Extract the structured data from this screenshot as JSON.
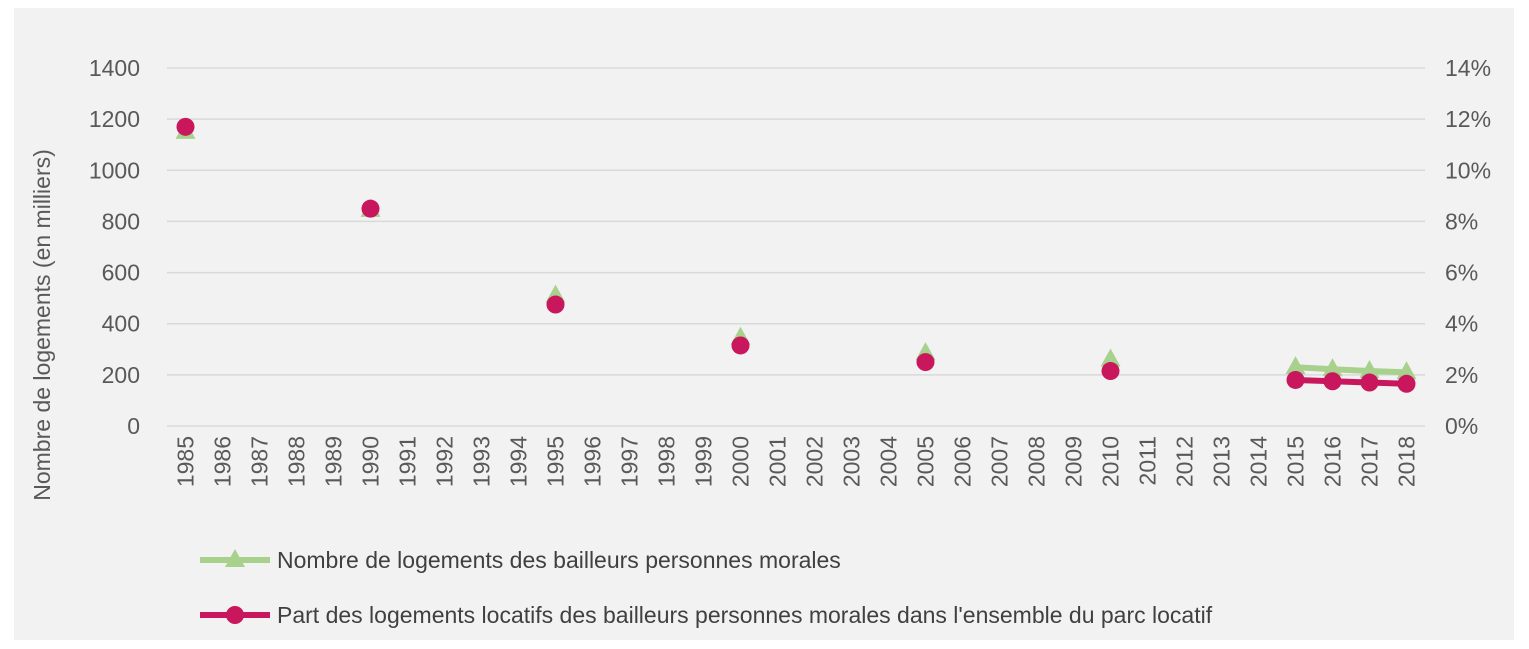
{
  "chart_data": {
    "type": "line",
    "title": "",
    "ylabel": "Nombre de logements (en milliers)",
    "y2label": "",
    "ylim": [
      0,
      1400
    ],
    "y2lim": [
      0,
      14
    ],
    "yticks": [
      "0",
      "200",
      "400",
      "600",
      "800",
      "1000",
      "1200",
      "1400"
    ],
    "y2ticks": [
      "0%",
      "2%",
      "4%",
      "6%",
      "8%",
      "10%",
      "12%",
      "14%"
    ],
    "categories": [
      "1985",
      "1986",
      "1987",
      "1988",
      "1989",
      "1990",
      "1991",
      "1992",
      "1993",
      "1994",
      "1995",
      "1996",
      "1997",
      "1998",
      "1999",
      "2000",
      "2001",
      "2002",
      "2003",
      "2004",
      "2005",
      "2006",
      "2007",
      "2008",
      "2009",
      "2010",
      "2011",
      "2012",
      "2013",
      "2014",
      "2015",
      "2016",
      "2017",
      "2018"
    ],
    "grid": true,
    "legend_position": "bottom",
    "series": [
      {
        "name": "Nombre de logements des bailleurs personnes morales",
        "axis": "left",
        "marker": "triangle",
        "color": "#a9d18e",
        "values": [
          1150,
          null,
          null,
          null,
          null,
          845,
          null,
          null,
          null,
          null,
          510,
          null,
          null,
          null,
          null,
          345,
          null,
          null,
          null,
          null,
          285,
          null,
          null,
          null,
          null,
          260,
          null,
          null,
          null,
          null,
          230,
          222,
          215,
          210
        ]
      },
      {
        "name": "Part des logements locatifs des bailleurs personnes morales dans l'ensemble du parc locatif",
        "axis": "right",
        "marker": "circle",
        "color": "#c8175d",
        "values": [
          11.7,
          null,
          null,
          null,
          null,
          8.5,
          null,
          null,
          null,
          null,
          4.75,
          null,
          null,
          null,
          null,
          3.15,
          null,
          null,
          null,
          null,
          2.5,
          null,
          null,
          null,
          null,
          2.15,
          null,
          null,
          null,
          null,
          1.8,
          1.75,
          1.7,
          1.65
        ]
      }
    ]
  }
}
